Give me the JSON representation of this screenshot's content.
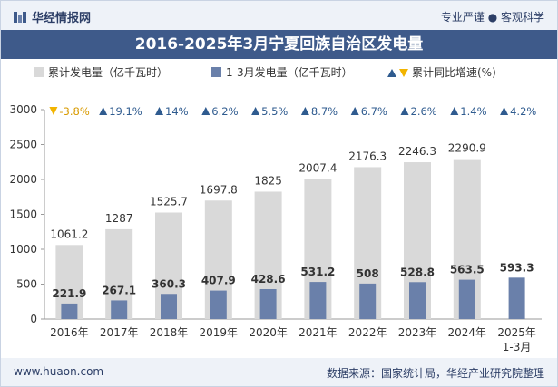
{
  "header": {
    "site_name": "华经情报网",
    "tagline": "专业严谨 ● 客观科学"
  },
  "title": "2016-2025年3月宁夏回族自治区发电量",
  "legend": {
    "cumulative": "累计发电量（亿千瓦时）",
    "monthly": "1-3月发电量（亿千瓦时）",
    "growth": "累计同比增速(%)"
  },
  "footer": {
    "url": "www.huaon.com",
    "source": "数据来源：国家统计局，华经产业研究院整理"
  },
  "colors": {
    "cumulative": "#d9d9d9",
    "monthly": "#6a80aa",
    "growth_up": "#2f5b8f",
    "growth_down": "#f2b400",
    "title_bg": "#3e5a8a"
  },
  "chart_data": {
    "type": "bar",
    "categories": [
      "2016年",
      "2017年",
      "2018年",
      "2019年",
      "2020年",
      "2021年",
      "2022年",
      "2023年",
      "2024年",
      "2025年\n1-3月"
    ],
    "series": [
      {
        "name": "累计发电量（亿千瓦时）",
        "values": [
          1061.2,
          1287,
          1525.7,
          1697.8,
          1825,
          2007.4,
          2176.3,
          2246.3,
          2290.9,
          null
        ]
      },
      {
        "name": "1-3月发电量（亿千瓦时）",
        "values": [
          221.9,
          267.1,
          360.3,
          407.9,
          428.6,
          531.2,
          508,
          528.8,
          563.5,
          593.3
        ]
      }
    ],
    "growth": {
      "name": "累计同比增速(%)",
      "labels": [
        "-3.8%",
        "19.1%",
        "14%",
        "6.2%",
        "5.5%",
        "8.7%",
        "6.7%",
        "2.6%",
        "1.4%",
        "4.2%"
      ],
      "direction": [
        "down",
        "up",
        "up",
        "up",
        "up",
        "up",
        "up",
        "up",
        "up",
        "up"
      ]
    },
    "ylim": [
      0,
      3000
    ],
    "yticks": [
      0,
      500,
      1000,
      1500,
      2000,
      2500,
      3000
    ],
    "grid": false
  }
}
